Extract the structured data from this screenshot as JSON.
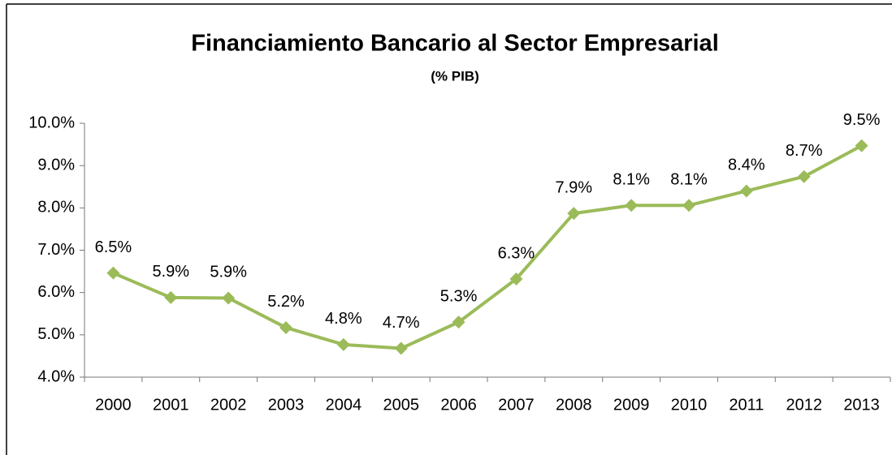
{
  "chart_data": {
    "type": "line",
    "title": "Financiamiento Bancario al Sector Empresarial",
    "subtitle": "(% PIB)",
    "categories": [
      "2000",
      "2001",
      "2002",
      "2003",
      "2004",
      "2005",
      "2006",
      "2007",
      "2008",
      "2009",
      "2010",
      "2011",
      "2012",
      "2013"
    ],
    "series": [
      {
        "color": "#9bbb59",
        "values": [
          6.46,
          5.88,
          5.87,
          5.17,
          4.77,
          4.68,
          5.3,
          6.32,
          7.87,
          8.06,
          8.06,
          8.4,
          8.74,
          9.47
        ],
        "value_labels": [
          "6.5%",
          "5.9%",
          "5.9%",
          "5.2%",
          "4.8%",
          "4.7%",
          "5.3%",
          "6.3%",
          "7.9%",
          "8.1%",
          "8.1%",
          "8.4%",
          "8.7%",
          "9.5%"
        ]
      }
    ],
    "ylim": [
      4,
      10
    ],
    "yticks": [
      {
        "value": 4,
        "label": "4.0%"
      },
      {
        "value": 5,
        "label": "5.0%"
      },
      {
        "value": 6,
        "label": "6.0%"
      },
      {
        "value": 7,
        "label": "7.0%"
      },
      {
        "value": 8,
        "label": "8.0%"
      },
      {
        "value": 9,
        "label": "9.0%"
      },
      {
        "value": 10,
        "label": "10.0%"
      }
    ],
    "grid": false
  }
}
